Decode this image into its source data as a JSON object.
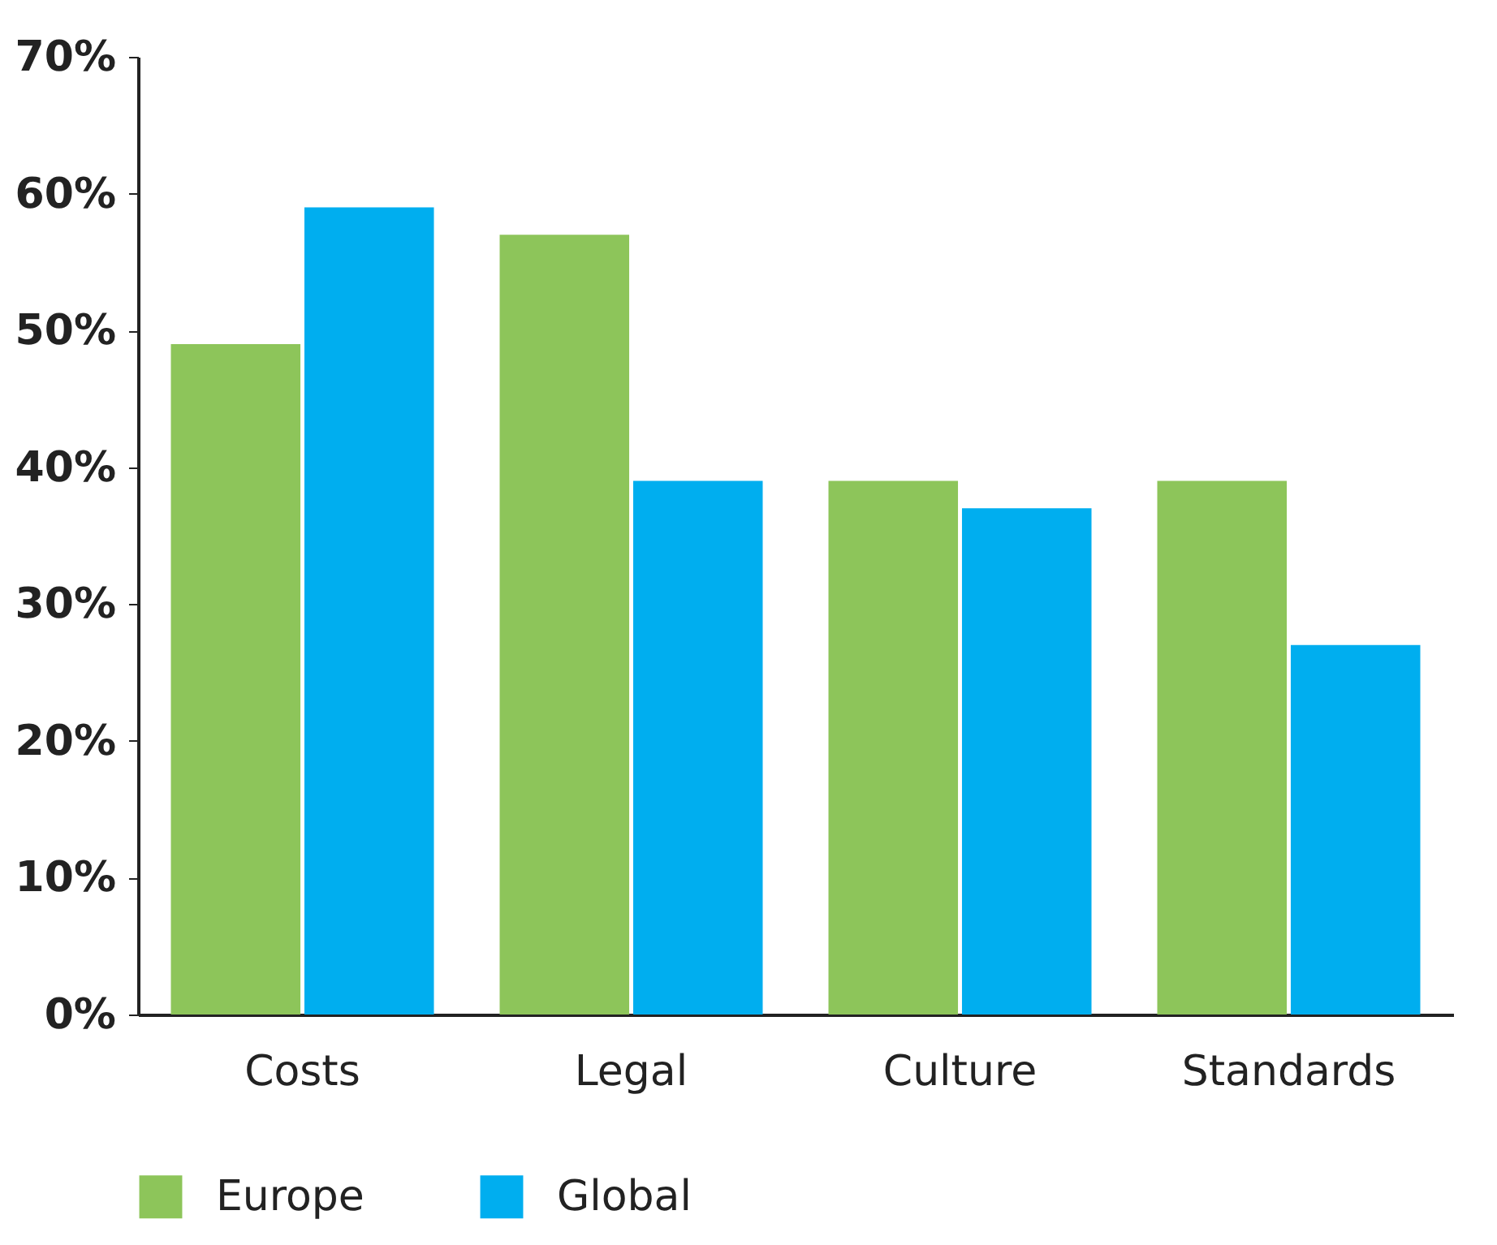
{
  "chart_data": {
    "type": "bar",
    "categories": [
      "Costs",
      "Legal",
      "Culture",
      "Standards"
    ],
    "series": [
      {
        "name": "Europe",
        "color": "#8dc55a",
        "values": [
          49,
          57,
          39,
          39
        ]
      },
      {
        "name": "Global",
        "color": "#00aeef",
        "values": [
          59,
          39,
          37,
          27
        ]
      }
    ],
    "ylim": [
      0,
      70
    ],
    "yticks": [
      {
        "value": 0,
        "label": "0%"
      },
      {
        "value": 10,
        "label": "10%"
      },
      {
        "value": 20,
        "label": "20%"
      },
      {
        "value": 30,
        "label": "30%"
      },
      {
        "value": 40,
        "label": "40%"
      },
      {
        "value": 50,
        "label": "50%"
      },
      {
        "value": 60,
        "label": "60%"
      },
      {
        "value": 70,
        "label": "70%"
      }
    ],
    "legend": "bottom left"
  }
}
